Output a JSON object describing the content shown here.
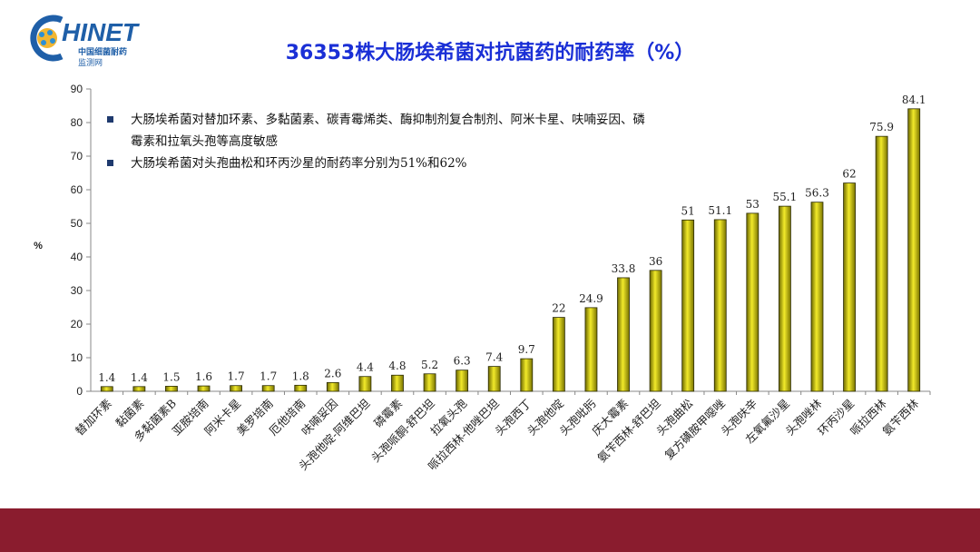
{
  "logo": {
    "word": "HINET",
    "sub1": "中国细菌耐药",
    "sub2": "监测网"
  },
  "colors": {
    "title": "#1a2fd6",
    "bar": "#d4cc10",
    "band": "#8a1c2e"
  },
  "notes": [
    "大肠埃希菌对替加环素、多黏菌素、碳青霉烯类、酶抑制剂复合制剂、阿米卡星、呋喃妥因、磷霉素和拉氧头孢等高度敏感",
    "大肠埃希菌对头孢曲松和环丙沙星的耐药率分别为51%和62%"
  ],
  "chart_data": {
    "type": "bar",
    "title": "36353株大肠埃希菌对抗菌药的耐药率（%）",
    "ylabel": "%",
    "xlabel": "",
    "ylim": [
      0,
      90
    ],
    "yticks": [
      0,
      10,
      20,
      30,
      40,
      50,
      60,
      70,
      80,
      90
    ],
    "grid": false,
    "categories": [
      "替加环素",
      "黏菌素",
      "多黏菌素B",
      "亚胺培南",
      "阿米卡星",
      "美罗培南",
      "厄他培南",
      "呋喃妥因",
      "头孢他啶-阿维巴坦",
      "磷霉素",
      "头孢哌酮-舒巴坦",
      "拉氧头孢",
      "哌拉西林-他唑巴坦",
      "头孢西丁",
      "头孢他啶",
      "头孢吡肟",
      "庆大霉素",
      "氨苄西林-舒巴坦",
      "头孢曲松",
      "复方磺胺甲噁唑",
      "头孢呋辛",
      "左氧氟沙星",
      "头孢唑林",
      "环丙沙星",
      "哌拉西林",
      "氨苄西林"
    ],
    "values": [
      1.4,
      1.4,
      1.5,
      1.6,
      1.7,
      1.7,
      1.8,
      2.6,
      4.4,
      4.8,
      5.2,
      6.3,
      7.4,
      9.7,
      22,
      24.9,
      33.8,
      36,
      51,
      51.1,
      53,
      55.1,
      56.3,
      62,
      75.9,
      84.1
    ]
  }
}
